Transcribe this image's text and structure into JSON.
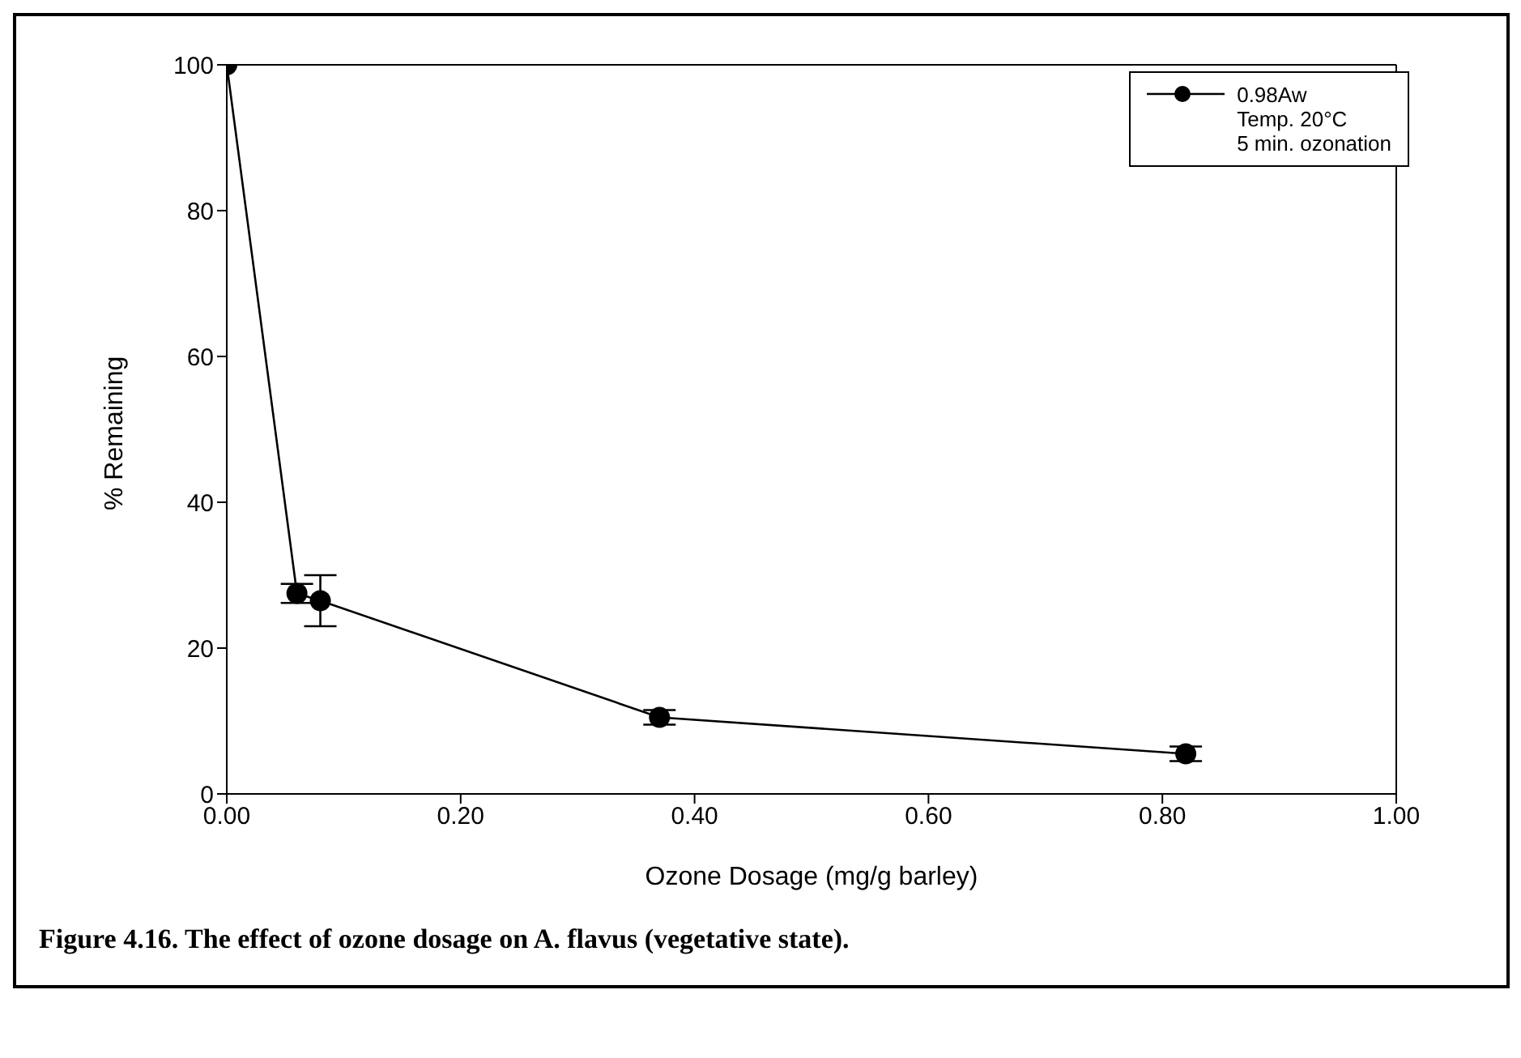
{
  "chart_data": {
    "type": "line",
    "xlabel": "Ozone Dosage (mg/g barley)",
    "ylabel": "% Remaining",
    "x": [
      0,
      0.06,
      0.08,
      0.37,
      0.82
    ],
    "series": [
      {
        "name": "0.98Aw\nTemp. 20°C\n5 min. ozonation",
        "color": "#000000",
        "values": [
          100,
          27.5,
          26.5,
          10.5,
          5.5
        ],
        "errors": [
          null,
          1.3,
          3.5,
          1,
          1
        ]
      }
    ],
    "xlim": [
      0,
      1
    ],
    "xticks": [
      {
        "value": 0,
        "label": "0.00"
      },
      {
        "value": 0.2,
        "label": "0.20"
      },
      {
        "value": 0.4,
        "label": "0.40"
      },
      {
        "value": 0.6,
        "label": "0.60"
      },
      {
        "value": 0.8,
        "label": "0.80"
      },
      {
        "value": 1,
        "label": "1.00"
      }
    ],
    "ylim": [
      0,
      100
    ],
    "yticks": [
      0,
      20,
      40,
      60,
      80,
      100
    ],
    "grid": false,
    "legend": "top right",
    "marker": "circle",
    "line_style": "solid",
    "annotations": [
      "Figure 4.16.  The effect of ozone dosage on A.  flavus (vegetative state)."
    ]
  }
}
